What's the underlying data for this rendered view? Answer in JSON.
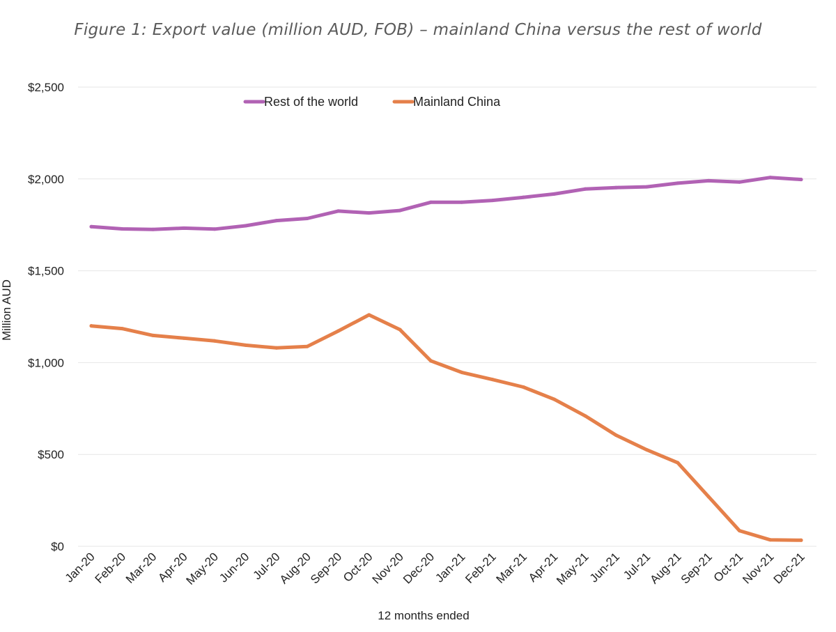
{
  "chart_data": {
    "type": "line",
    "title": "Figure 1: Export value (million AUD, FOB) – mainland China versus the rest of world",
    "xlabel": "12 months ended",
    "ylabel": "Million AUD",
    "ylim": [
      0,
      2500
    ],
    "yticks": [
      0,
      500,
      1000,
      1500,
      2000,
      2500
    ],
    "ytick_labels": [
      "$0",
      "$500",
      "$1,000",
      "$1,500",
      "$2,000",
      "$2,500"
    ],
    "grid": true,
    "legend_position": "top-center",
    "categories": [
      "Jan-20",
      "Feb-20",
      "Mar-20",
      "Apr-20",
      "May-20",
      "Jun-20",
      "Jul-20",
      "Aug-20",
      "Sep-20",
      "Oct-20",
      "Nov-20",
      "Dec-20",
      "Jan-21",
      "Feb-21",
      "Mar-21",
      "Apr-21",
      "May-21",
      "Jun-21",
      "Jul-21",
      "Aug-21",
      "Sep-21",
      "Oct-21",
      "Nov-21",
      "Dec-21"
    ],
    "series": [
      {
        "name": "Rest of the world",
        "color": "#b162b4",
        "values": [
          1740,
          1728,
          1725,
          1732,
          1727,
          1745,
          1773,
          1785,
          1825,
          1815,
          1828,
          1873,
          1873,
          1883,
          1900,
          1918,
          1945,
          1953,
          1957,
          1977,
          1990,
          1983,
          2008,
          1997
        ]
      },
      {
        "name": "Mainland China",
        "color": "#e5804a",
        "values": [
          1200,
          1185,
          1148,
          1133,
          1118,
          1095,
          1080,
          1088,
          1172,
          1260,
          1180,
          1010,
          947,
          908,
          867,
          800,
          710,
          605,
          525,
          455,
          270,
          85,
          35,
          33
        ]
      }
    ]
  }
}
